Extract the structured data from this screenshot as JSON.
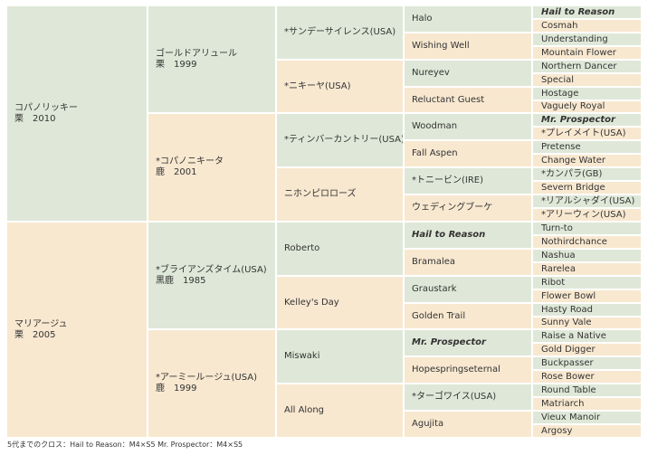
{
  "gen1": [
    {
      "name": "コパノリッキー",
      "info": "栗　2010"
    },
    {
      "name": "マリアージュ",
      "info": "栗　2005"
    }
  ],
  "gen2": [
    {
      "name": "ゴールドアリュール",
      "info": "栗　1999"
    },
    {
      "name": "*コパノニキータ",
      "info": "鹿　2001"
    },
    {
      "name": "*ブライアンズタイム(USA)",
      "info": "黒鹿　1985"
    },
    {
      "name": "*アーミールージュ(USA)",
      "info": "鹿　1999"
    }
  ],
  "gen3": [
    "*サンデーサイレンス(USA)",
    "*ニキーヤ(USA)",
    "*ティンバーカントリー(USA)",
    "ニホンピロローズ",
    "Roberto",
    "Kelley's Day",
    "Miswaki",
    "All Along"
  ],
  "gen4": [
    "Halo",
    "Wishing Well",
    "Nureyev",
    "Reluctant Guest",
    "Woodman",
    "Fall Aspen",
    "*トニービン(IRE)",
    "ウェディングブーケ",
    "Hail to Reason",
    "Bramalea",
    "Graustark",
    "Golden Trail",
    "Mr. Prospector",
    "Hopespringseternal",
    "*ターゴワイス(USA)",
    "Agujita"
  ],
  "gen5": [
    "Hail to Reason",
    "Cosmah",
    "Understanding",
    "Mountain Flower",
    "Northern Dancer",
    "Special",
    "Hostage",
    "Vaguely Royal",
    "Mr. Prospector",
    "*プレイメイト(USA)",
    "Pretense",
    "Change Water",
    "*カンパラ(GB)",
    "Severn Bridge",
    "*リアルシャダイ(USA)",
    "*アリーウィン(USA)",
    "Turn-to",
    "Nothirdchance",
    "Nashua",
    "Rarelea",
    "Ribot",
    "Flower Bowl",
    "Hasty Road",
    "Sunny Vale",
    "Raise a Native",
    "Gold Digger",
    "Buckpasser",
    "Rose Bower",
    "Round Table",
    "Matriarch",
    "Vieux Manoir",
    "Argosy"
  ],
  "footer": "5代までのクロス：Hail to Reason：M4×S5 Mr. Prospector：M4×S5",
  "colors": {
    "sire_side": "#dfe8d8",
    "dam_side": "#f8e8d0"
  }
}
